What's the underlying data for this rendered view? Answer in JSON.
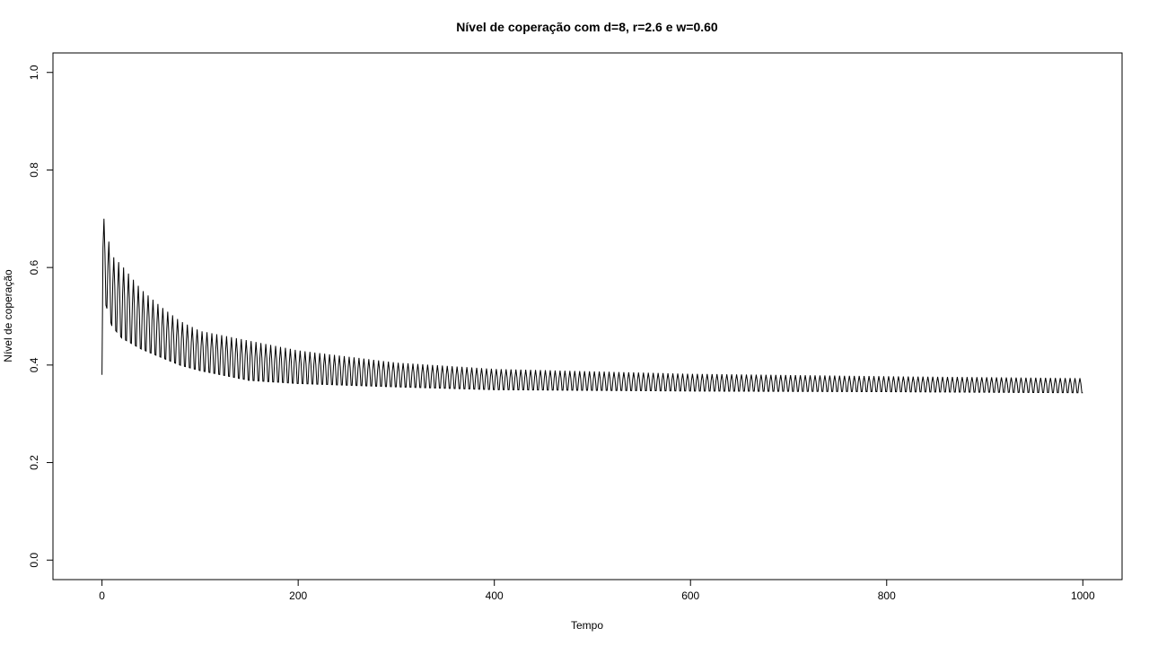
{
  "chart_data": {
    "type": "line",
    "title": "Nível de coperação com d=8, r=2.6 e w=0.60",
    "xlabel": "Tempo",
    "ylabel": "Nível de coperação",
    "xlim": [
      -50,
      1040
    ],
    "ylim": [
      -0.04,
      1.04
    ],
    "x_ticks": [
      0,
      200,
      400,
      600,
      800,
      1000
    ],
    "x_tick_labels": [
      "0",
      "200",
      "400",
      "600",
      "800",
      "1000"
    ],
    "y_ticks": [
      0.0,
      0.2,
      0.4,
      0.6,
      0.8,
      1.0
    ],
    "y_tick_labels": [
      "0.0",
      "0.2",
      "0.4",
      "0.6",
      "0.8",
      "1.0"
    ],
    "grid": false,
    "legend": "none",
    "line_color": "#000000",
    "series": [
      {
        "x_start": 0,
        "x_end": 1000,
        "n_points": 1001,
        "start_value": 0.38,
        "initial_peak": 0.7,
        "oscillation_period": 5,
        "upper_envelope": [
          [
            2,
            0.7
          ],
          [
            10,
            0.625
          ],
          [
            20,
            0.605
          ],
          [
            40,
            0.555
          ],
          [
            60,
            0.52
          ],
          [
            80,
            0.49
          ],
          [
            100,
            0.47
          ],
          [
            150,
            0.45
          ],
          [
            200,
            0.43
          ],
          [
            300,
            0.405
          ],
          [
            400,
            0.392
          ],
          [
            600,
            0.382
          ],
          [
            800,
            0.377
          ],
          [
            1000,
            0.373
          ]
        ],
        "lower_envelope": [
          [
            2,
            0.52
          ],
          [
            10,
            0.465
          ],
          [
            20,
            0.44
          ],
          [
            40,
            0.42
          ],
          [
            60,
            0.405
          ],
          [
            80,
            0.39
          ],
          [
            100,
            0.38
          ],
          [
            150,
            0.36
          ],
          [
            200,
            0.355
          ],
          [
            300,
            0.35
          ],
          [
            400,
            0.345
          ],
          [
            600,
            0.343
          ],
          [
            800,
            0.342
          ],
          [
            1000,
            0.34
          ]
        ]
      }
    ]
  }
}
